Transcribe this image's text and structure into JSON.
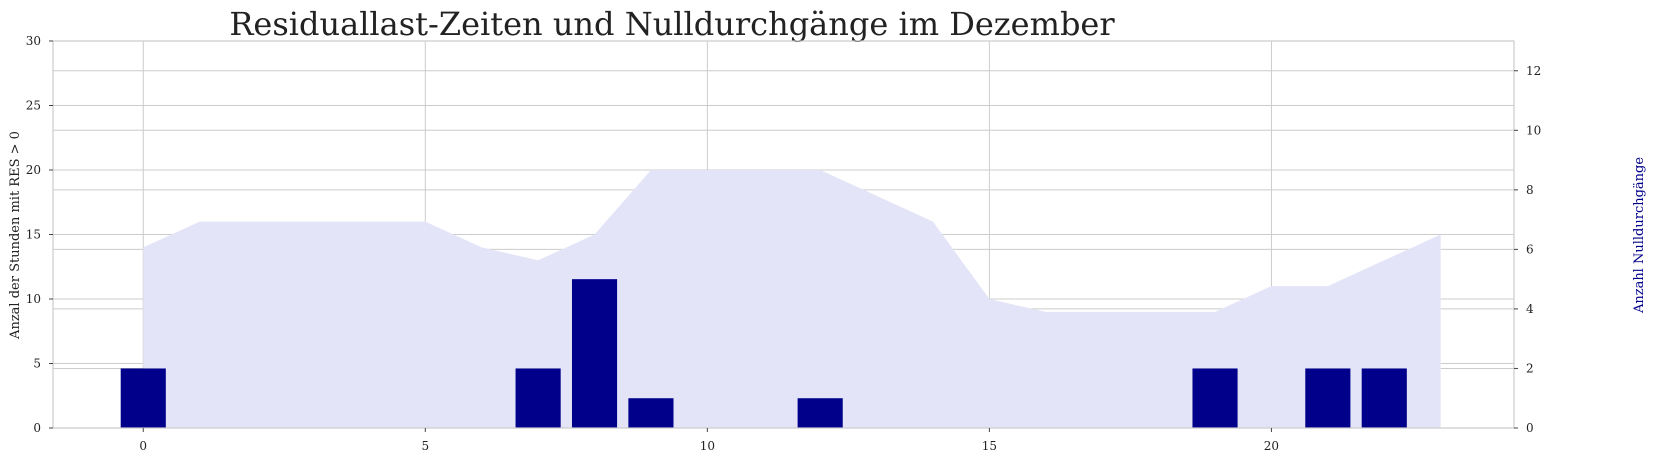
{
  "chart_data": {
    "type": "bar",
    "title": "Residuallast-Zeiten und Nulldurchgänge im Dezember",
    "ylabel": "Anzal der Stunden mit RES > 0",
    "y2label": "Anzahl Nulldurchgänge",
    "xlim": [
      -1.6,
      24.3
    ],
    "ylim": [
      0,
      30
    ],
    "y2lim": [
      0,
      13
    ],
    "xticks": [
      0,
      5,
      10,
      15,
      20
    ],
    "yticks": [
      0,
      5,
      10,
      15,
      20,
      25,
      30
    ],
    "y2ticks": [
      0,
      2,
      4,
      6,
      8,
      10,
      12
    ],
    "grid": true,
    "area_series": {
      "axis": "left",
      "color": "#e4e4f8",
      "x": [
        0,
        1,
        2,
        3,
        4,
        5,
        6,
        7,
        8,
        9,
        10,
        11,
        12,
        13,
        14,
        15,
        16,
        17,
        18,
        19,
        20,
        21,
        22,
        23
      ],
      "values": [
        14,
        16,
        16,
        16,
        16,
        16,
        14,
        13,
        15,
        20,
        20,
        20,
        20,
        18,
        16,
        10,
        9,
        9,
        9,
        9,
        11,
        11,
        13,
        15
      ]
    },
    "bar_series": {
      "axis": "right",
      "color": "#00008b",
      "x": [
        0,
        7,
        8,
        9,
        12,
        19,
        21,
        22
      ],
      "values": [
        2,
        2,
        5,
        1,
        1,
        2,
        2,
        2
      ]
    }
  }
}
